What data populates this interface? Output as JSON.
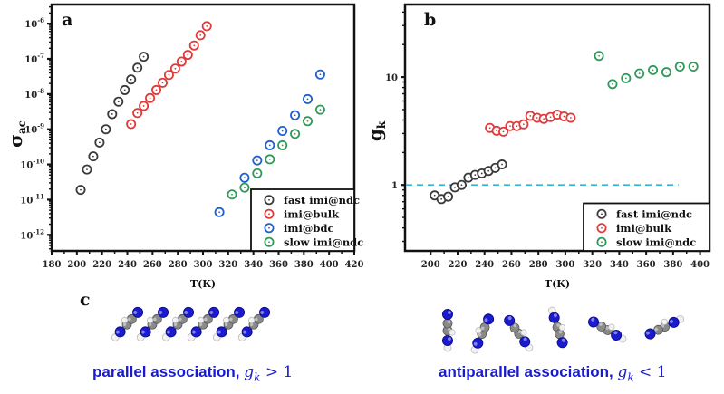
{
  "chart_data": [
    {
      "panel": "a",
      "type": "scatter",
      "xlabel": "T(K)",
      "ylabel": "σ_ac",
      "yscale": "log",
      "xlim": [
        180,
        420
      ],
      "ylim": [
        3.5e-13,
        3.5e-06
      ],
      "xticks": [
        180,
        200,
        220,
        240,
        260,
        280,
        300,
        320,
        340,
        360,
        380,
        400,
        420
      ],
      "yticks": [
        {
          "value": 1e-12,
          "base": "10",
          "exp": "-12"
        },
        {
          "value": 1e-11,
          "base": "10",
          "exp": "-11"
        },
        {
          "value": 1e-10,
          "base": "10",
          "exp": "-10"
        },
        {
          "value": 1e-09,
          "base": "10",
          "exp": "-9"
        },
        {
          "value": 1e-08,
          "base": "10",
          "exp": "-8"
        },
        {
          "value": 1e-07,
          "base": "10",
          "exp": "-7"
        },
        {
          "value": 1e-06,
          "base": "10",
          "exp": "-6"
        }
      ],
      "legend_position": "bottom-right",
      "series": [
        {
          "name": "fast imi@ndc",
          "color": "#3a3a3a",
          "x": [
            203,
            208,
            213,
            218,
            223,
            228,
            233,
            238,
            243,
            248,
            253
          ],
          "y": [
            1.9e-11,
            7.2e-11,
            1.7e-10,
            4.2e-10,
            1e-09,
            2.7e-09,
            6.1e-09,
            1.3e-08,
            2.6e-08,
            5.6e-08,
            1.15e-07
          ]
        },
        {
          "name": "imi@bulk",
          "color": "#e03a3a",
          "x": [
            243,
            248,
            253,
            258,
            263,
            268,
            273,
            278,
            283,
            288,
            293,
            298,
            303
          ],
          "y": [
            1.4e-09,
            2.9e-09,
            4.6e-09,
            7.7e-09,
            1.3e-08,
            2.1e-08,
            3.5e-08,
            5.3e-08,
            8.4e-08,
            1.3e-07,
            2.4e-07,
            4.7e-07,
            8.5e-07
          ]
        },
        {
          "name": "imi@bdc",
          "color": "#1f5fd0",
          "x": [
            313,
            333,
            343,
            353,
            363,
            373,
            383,
            393
          ],
          "y": [
            4.4e-12,
            4.2e-11,
            1.3e-10,
            3.5e-10,
            9e-10,
            2.5e-09,
            7.2e-09,
            3.6e-08
          ]
        },
        {
          "name": "slow imi@ndc",
          "color": "#2e9a5a",
          "x": [
            323,
            333,
            343,
            353,
            363,
            373,
            383,
            393
          ],
          "y": [
            1.4e-11,
            2.2e-11,
            5.6e-11,
            1.4e-10,
            3.5e-10,
            7.4e-10,
            1.7e-09,
            3.6e-09
          ]
        }
      ]
    },
    {
      "panel": "b",
      "type": "scatter",
      "xlabel": "T(K)",
      "ylabel": "g_k",
      "yscale": "log",
      "xlim": [
        181,
        407
      ],
      "ylim": [
        0.245,
        47
      ],
      "xticks": [
        200,
        220,
        240,
        260,
        280,
        300,
        320,
        340,
        360,
        380,
        400
      ],
      "yticks": [
        {
          "value": 1,
          "label": "1"
        },
        {
          "value": 10,
          "label": "10"
        }
      ],
      "reference_line": {
        "y": 1,
        "x_end": 384,
        "style": "dashed",
        "color": "#3bb0d8"
      },
      "legend_position": "bottom-right",
      "series": [
        {
          "name": "fast imi@ndc",
          "color": "#3a3a3a",
          "x": [
            203,
            208,
            213,
            218,
            223,
            228,
            233,
            238,
            243,
            248,
            253
          ],
          "y": [
            0.8,
            0.74,
            0.78,
            0.95,
            1.0,
            1.17,
            1.24,
            1.28,
            1.35,
            1.44,
            1.55
          ]
        },
        {
          "name": "imi@bulk",
          "color": "#e03a3a",
          "x": [
            244,
            249,
            254,
            259,
            264,
            269,
            274,
            279,
            284,
            289,
            294,
            299,
            304
          ],
          "y": [
            3.38,
            3.18,
            3.12,
            3.51,
            3.51,
            3.65,
            4.37,
            4.2,
            4.1,
            4.26,
            4.49,
            4.32,
            4.2
          ]
        },
        {
          "name": "slow imi@ndc",
          "color": "#2e9a5a",
          "x": [
            325,
            335,
            345,
            355,
            365,
            375,
            385,
            395
          ],
          "y": [
            15.7,
            8.61,
            9.75,
            10.8,
            11.6,
            11.1,
            12.5,
            12.5
          ]
        }
      ]
    }
  ],
  "panels": {
    "a_label": "a",
    "b_label": "b",
    "c_label": "c",
    "a_ylabel_main": "σ",
    "a_ylabel_sub": "ac",
    "b_ylabel_main": "g",
    "b_ylabel_sub": "k",
    "xlabel": "T(K)"
  },
  "captions": {
    "left_text": "parallel association, ",
    "left_math": "g",
    "left_math_sub": "k",
    "left_relation": " > 1",
    "right_text": "antiparallel association, ",
    "right_math": "g",
    "right_math_sub": "k",
    "right_relation": " < 1"
  },
  "molecule_colors": {
    "nitrogen": "#1a1ad0",
    "carbon": "#8a8a8a",
    "hydrogen": "#f0f0f0"
  }
}
